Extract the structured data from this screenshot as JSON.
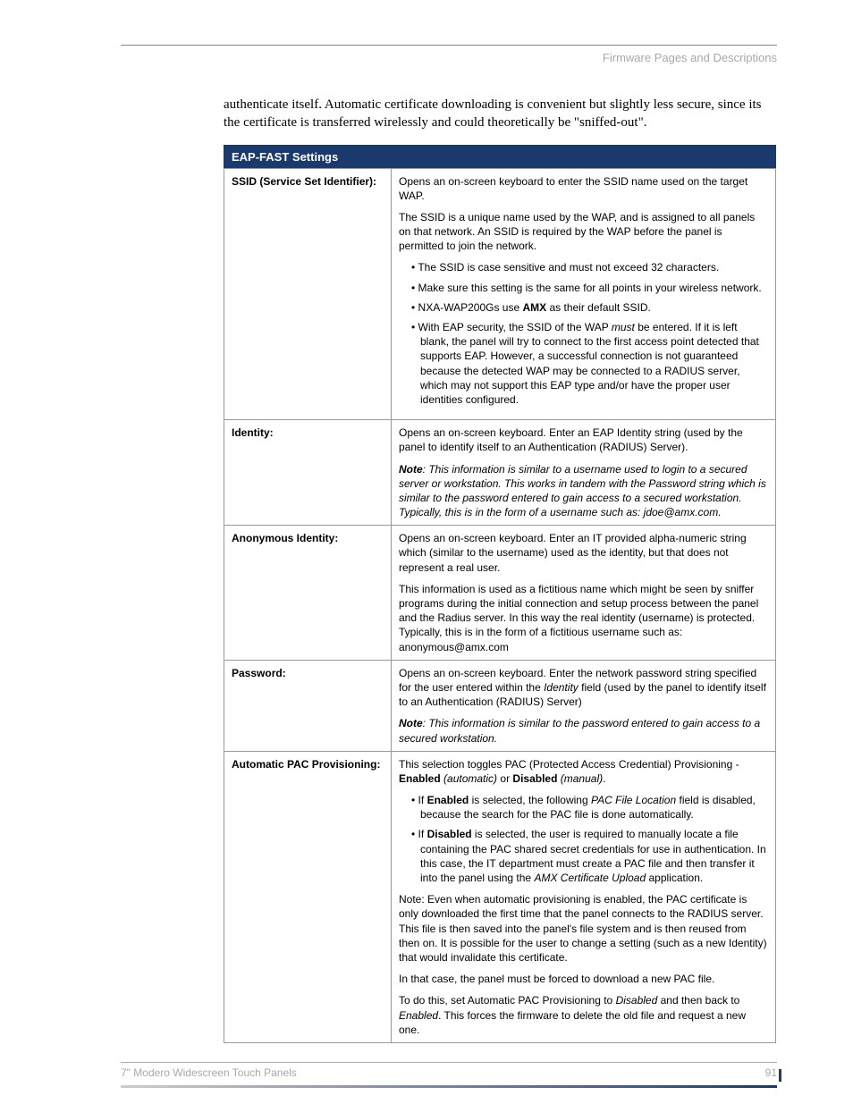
{
  "header": {
    "section": "Firmware Pages and Descriptions"
  },
  "intro": "authenticate itself. Automatic certificate downloading is convenient but slightly less secure, since its the certificate is transferred wirelessly and could theoretically be \"sniffed-out\".",
  "table": {
    "title": "EAP-FAST Settings",
    "rows": [
      {
        "label": "SSID (Service Set Identifier):",
        "html": "<p>Opens an on-screen keyboard to enter the SSID name used on the target WAP.</p><p>The SSID is a unique name used by the WAP, and is assigned to all panels on that network. An SSID is required by the WAP before the panel is permitted to join the network.</p><ul><li>The SSID is case sensitive and must not exceed 32 characters.</li><li>Make sure this setting is the same for all points in your wireless network.</li><li>NXA-WAP200Gs use <span class=\"b\">AMX</span> as their default SSID.</li><li>With EAP security, the SSID of the WAP <span class=\"i\">must</span> be entered. If it is left blank, the panel will try to connect to the first access point detected that supports EAP. However, a successful connection is not guaranteed because the detected WAP may be connected to a RADIUS server, which may not support this EAP type and/or have the proper user identities configured.</li></ul>"
      },
      {
        "label": "Identity:",
        "html": "<p>Opens an on-screen keyboard. Enter an EAP Identity string (used by the panel to identify itself to an Authentication (RADIUS) Server).</p><p><span class=\"b i\">Note</span><span class=\"i\">: This information is similar to a username used to login to a secured server or workstation. This works in tandem with the Password string which is similar to the password entered to gain access to a secured workstation. Typically, this is in the form of a username such as: jdoe@amx.com.</span></p>"
      },
      {
        "label": "Anonymous Identity:",
        "html": "<p>Opens an on-screen keyboard. Enter an IT provided alpha-numeric string which (similar to the username) used as the identity, but that does not represent a real user.</p><p>This information is used as a fictitious name which might be seen by sniffer programs during the initial connection and setup process between the panel and the Radius server. In this way the real identity (username) is protected. Typically, this is in the form of a fictitious username such as: anonymous@amx.com</p>"
      },
      {
        "label": "Password:",
        "html": "<p>Opens an on-screen keyboard. Enter the network password string specified for the user entered within the <span class=\"i\">Identity</span> field (used by the panel to identify itself to an Authentication (RADIUS) Server)</p><p><span class=\"b i\">Note</span><span class=\"i\">: This information is similar to the password entered to gain access to a secured workstation.</span></p>"
      },
      {
        "label": "Automatic PAC Provisioning:",
        "html": "<p>This selection toggles PAC (Protected Access Credential) Provisioning - <span class=\"b\">Enabled</span> <span class=\"i\">(automatic)</span> or <span class=\"b\">Disabled</span> <span class=\"i\">(manual)</span>.</p><ul><li>If <span class=\"b\">Enabled</span> is selected, the following <span class=\"i\">PAC File Location</span> field is disabled, because the search for the PAC file is done automatically.</li><li>If <span class=\"b\">Disabled</span> is selected, the user is required to manually locate a file containing the PAC shared secret credentials for use in authentication. In this case, the IT department must create a PAC file and then transfer it into the panel using the <span class=\"i\">AMX Certificate Upload</span> application.</li></ul><p>Note: Even when automatic provisioning is enabled, the PAC certificate is only downloaded the first time that the panel connects to the RADIUS server. This file is then saved into the panel's file system and is then reused from then on. It is possible for the user to change a setting (such as a new Identity) that would invalidate this certificate.</p><p>In that case, the panel must be forced to download a new PAC file.</p><p>To do this, set Automatic PAC Provisioning to <span class=\"i\">Disabled</span> and then back to <span class=\"i\">Enabled</span>. This forces the firmware to delete the old file and request a new one.</p>"
      }
    ]
  },
  "footer": {
    "product": "7\" Modero Widescreen Touch Panels",
    "page": "91"
  }
}
